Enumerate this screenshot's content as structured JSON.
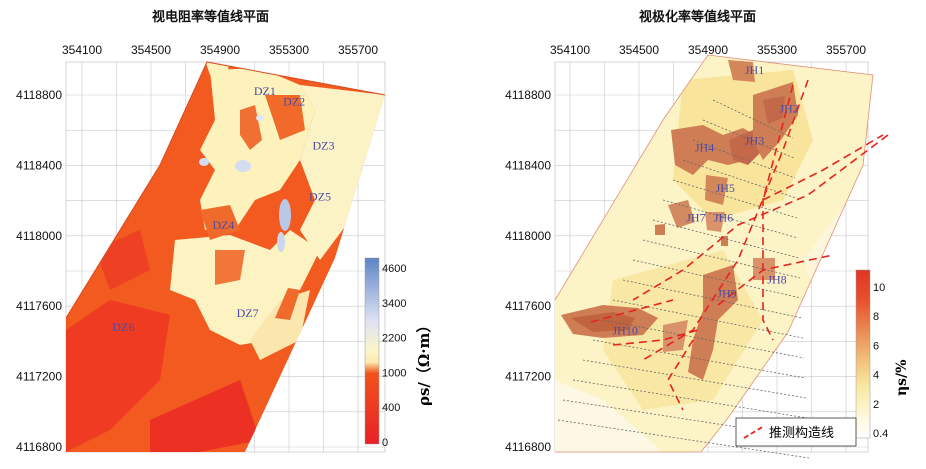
{
  "chart_data": [
    {
      "type": "heatmap",
      "title": "视电阻率等值线平面",
      "x_ticks": [
        "354100",
        "354500",
        "354900",
        "355300",
        "355700"
      ],
      "y_ticks": [
        "4118800",
        "4118400",
        "4118000",
        "4117600",
        "4117200",
        "4116800"
      ],
      "x_range": [
        354000,
        355800
      ],
      "y_range": [
        4116800,
        4119000
      ],
      "grid": true,
      "colorbar": {
        "label": "ρs/（Ω·m）",
        "ticks": [
          "4600",
          "3400",
          "2200",
          "1000",
          "400",
          "0"
        ],
        "values": [
          4600,
          3400,
          2200,
          1000,
          400,
          0
        ]
      },
      "zone_labels": [
        {
          "label": "DZ1",
          "x": 355160,
          "y": 4118800
        },
        {
          "label": "DZ2",
          "x": 355330,
          "y": 4118740
        },
        {
          "label": "DZ3",
          "x": 355500,
          "y": 4118490
        },
        {
          "label": "DZ5",
          "x": 355480,
          "y": 4118200
        },
        {
          "label": "DZ4",
          "x": 354920,
          "y": 4118040
        },
        {
          "label": "DZ7",
          "x": 355060,
          "y": 4117540
        },
        {
          "label": "DZ6",
          "x": 354340,
          "y": 4117460
        }
      ]
    },
    {
      "type": "heatmap",
      "title": "视极化率等值线平面",
      "x_ticks": [
        "354100",
        "354500",
        "354900",
        "355300",
        "355700"
      ],
      "y_ticks": [
        "4118800",
        "4118400",
        "4118000",
        "4117600",
        "4117200",
        "4116800"
      ],
      "x_range": [
        354000,
        355800
      ],
      "y_range": [
        4116800,
        4119000
      ],
      "grid": true,
      "colorbar": {
        "label": "ηs/%",
        "ticks": [
          "10",
          "8",
          "6",
          "4",
          "2",
          "0.4"
        ],
        "values": [
          10,
          8,
          6,
          4,
          2,
          0.4
        ]
      },
      "legend": {
        "label": "推测构造线",
        "placement": "bottom-right"
      },
      "zone_labels": [
        {
          "label": "JH1",
          "x": 355170,
          "y": 4118920
        },
        {
          "label": "JH2",
          "x": 355370,
          "y": 4118700
        },
        {
          "label": "JH3",
          "x": 355170,
          "y": 4118520
        },
        {
          "label": "JH4",
          "x": 354880,
          "y": 4118480
        },
        {
          "label": "JH5",
          "x": 355000,
          "y": 4118250
        },
        {
          "label": "JH6",
          "x": 354990,
          "y": 4118080
        },
        {
          "label": "JH7",
          "x": 354830,
          "y": 4118080
        },
        {
          "label": "JH8",
          "x": 355300,
          "y": 4117730
        },
        {
          "label": "JH9",
          "x": 355010,
          "y": 4117650
        },
        {
          "label": "JH10",
          "x": 354420,
          "y": 4117440
        }
      ]
    }
  ]
}
